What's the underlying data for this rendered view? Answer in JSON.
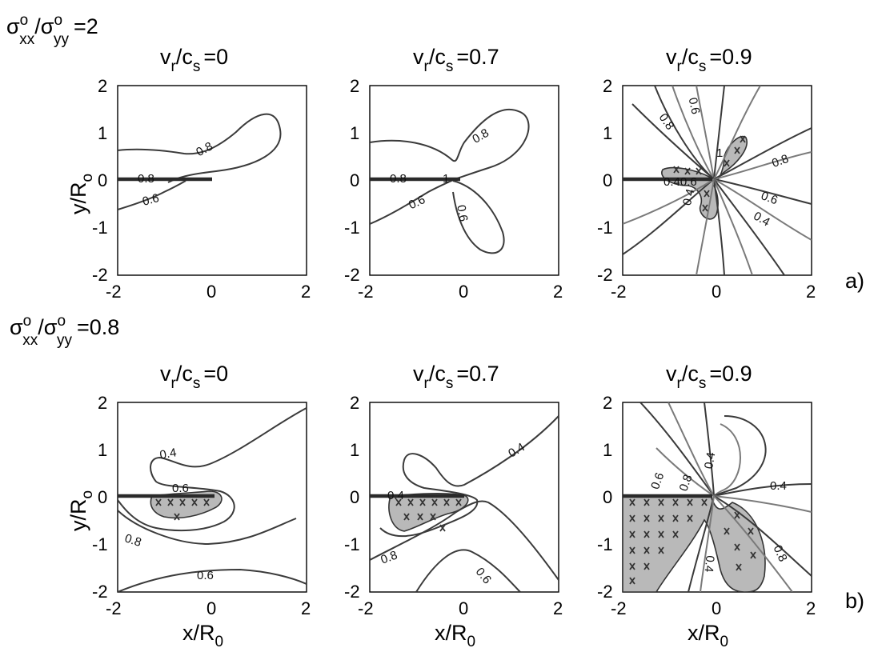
{
  "figure": {
    "rows": [
      {
        "id": "a",
        "part_label": "a)",
        "stress_ratio": {
          "sigma": "σ",
          "sup_num": "o",
          "sub_num": "xx",
          "slash": "/",
          "sup_den": "o",
          "sub_den": "yy",
          "value": "=2"
        },
        "panels": [
          {
            "v": "v",
            "v_sub": "r",
            "slash": "/c",
            "c_sub": "s",
            "value": "=0"
          },
          {
            "v": "v",
            "v_sub": "r",
            "slash": "/c",
            "c_sub": "s",
            "value": "=0.7"
          },
          {
            "v": "v",
            "v_sub": "r",
            "slash": "/c",
            "c_sub": "s",
            "value": "=0.9"
          }
        ]
      },
      {
        "id": "b",
        "part_label": "b)",
        "stress_ratio": {
          "sigma": "σ",
          "sup_num": "o",
          "sub_num": "xx",
          "slash": "/",
          "sup_den": "o",
          "sub_den": "yy",
          "value": "=0.8"
        },
        "panels": [
          {
            "v": "v",
            "v_sub": "r",
            "slash": "/c",
            "c_sub": "s",
            "value": "=0"
          },
          {
            "v": "v",
            "v_sub": "r",
            "slash": "/c",
            "c_sub": "s",
            "value": "=0.7"
          },
          {
            "v": "v",
            "v_sub": "r",
            "slash": "/c",
            "c_sub": "s",
            "value": "=0.9"
          }
        ]
      }
    ],
    "ylabel": {
      "base": "y/R",
      "sub": "o"
    },
    "xlabel": {
      "base": "x/R",
      "sub": "0"
    }
  },
  "chart_data": [
    {
      "type": "contour",
      "panel": "a-1",
      "xlim": [
        -2,
        2
      ],
      "ylim": [
        -2,
        2
      ],
      "xticks": [
        "-2",
        "0",
        "2"
      ],
      "yticks": [
        "2",
        "1",
        "0",
        "-1",
        "-2"
      ],
      "contour_labels": [
        "0.8",
        "0.8",
        "0.6"
      ]
    },
    {
      "type": "contour",
      "panel": "a-2",
      "xlim": [
        -2,
        2
      ],
      "ylim": [
        -2,
        2
      ],
      "xticks": [
        "-2",
        "0",
        "2"
      ],
      "yticks": [
        "2",
        "1",
        "0",
        "-1",
        "-2"
      ],
      "contour_labels": [
        "0.8",
        "0.8",
        "0.6",
        "0.6",
        "1"
      ]
    },
    {
      "type": "contour",
      "panel": "a-3",
      "xlim": [
        -2,
        2
      ],
      "ylim": [
        -2,
        2
      ],
      "xticks": [
        "-2",
        "0",
        "2"
      ],
      "yticks": [
        "2",
        "1",
        "0",
        "-1",
        "-2"
      ],
      "contour_labels": [
        "0.8",
        "0.6",
        "1",
        "0.8",
        "0.6",
        "0.4",
        "0.40.6",
        "0.4"
      ]
    },
    {
      "type": "contour",
      "panel": "b-1",
      "xlim": [
        -2,
        2
      ],
      "ylim": [
        -2,
        2
      ],
      "xticks": [
        "-2",
        "0",
        "2"
      ],
      "yticks": [
        "2",
        "1",
        "0",
        "-1",
        "-2"
      ],
      "contour_labels": [
        "0.4",
        "0.6",
        "0.8",
        "0.6"
      ]
    },
    {
      "type": "contour",
      "panel": "b-2",
      "xlim": [
        -2,
        2
      ],
      "ylim": [
        -2,
        2
      ],
      "xticks": [
        "-2",
        "0",
        "2"
      ],
      "yticks": [
        "2",
        "1",
        "0",
        "-1",
        "-2"
      ],
      "contour_labels": [
        "0.4",
        "0.4",
        "0.8",
        "0.6"
      ]
    },
    {
      "type": "contour",
      "panel": "b-3",
      "xlim": [
        -2,
        2
      ],
      "ylim": [
        -2,
        2
      ],
      "xticks": [
        "-2",
        "0",
        "2"
      ],
      "yticks": [
        "2",
        "1",
        "0",
        "-1",
        "-2"
      ],
      "contour_labels": [
        "0.4",
        "0.6",
        "0.8",
        "0.4",
        "0.8",
        "0.4"
      ]
    }
  ]
}
